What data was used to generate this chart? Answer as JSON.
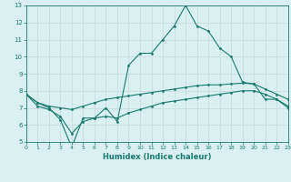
{
  "title": "",
  "xlabel": "Humidex (Indice chaleur)",
  "x": [
    0,
    1,
    2,
    3,
    4,
    5,
    6,
    7,
    8,
    9,
    10,
    11,
    12,
    13,
    14,
    15,
    16,
    17,
    18,
    19,
    20,
    21,
    22,
    23
  ],
  "line1": [
    7.8,
    7.3,
    7.0,
    6.3,
    4.7,
    6.4,
    6.4,
    7.0,
    6.2,
    9.5,
    10.2,
    10.2,
    11.0,
    11.8,
    13.0,
    11.8,
    11.5,
    10.5,
    10.0,
    8.5,
    8.4,
    7.5,
    7.5,
    7.0
  ],
  "line2": [
    7.8,
    7.3,
    7.1,
    7.0,
    6.9,
    7.1,
    7.3,
    7.5,
    7.6,
    7.7,
    7.8,
    7.9,
    8.0,
    8.1,
    8.2,
    8.3,
    8.35,
    8.35,
    8.4,
    8.45,
    8.4,
    8.1,
    7.8,
    7.5
  ],
  "line3": [
    7.8,
    7.1,
    6.9,
    6.5,
    5.5,
    6.2,
    6.4,
    6.5,
    6.4,
    6.7,
    6.9,
    7.1,
    7.3,
    7.4,
    7.5,
    7.6,
    7.7,
    7.8,
    7.9,
    8.0,
    8.0,
    7.8,
    7.5,
    7.1
  ],
  "line_color": "#1a7a6e",
  "bg_color": "#d8f0f0",
  "grid_color": "#c8dede",
  "ylim": [
    5,
    13
  ],
  "xlim": [
    0,
    23
  ],
  "yticks": [
    5,
    6,
    7,
    8,
    9,
    10,
    11,
    12,
    13
  ],
  "xticks": [
    0,
    1,
    2,
    3,
    4,
    5,
    6,
    7,
    8,
    9,
    10,
    11,
    12,
    13,
    14,
    15,
    16,
    17,
    18,
    19,
    20,
    21,
    22,
    23
  ]
}
